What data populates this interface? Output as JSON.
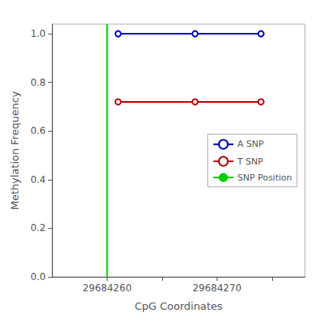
{
  "chart_data": {
    "type": "line",
    "xlabel": "CpG Coordinates",
    "ylabel": "Methylation Frequency",
    "x": [
      29684261,
      29684268,
      29684274
    ],
    "series": [
      {
        "name": "A SNP",
        "color": "#0000BB",
        "values": [
          1.0,
          1.0,
          1.0
        ],
        "marker": "circle"
      },
      {
        "name": "T SNP",
        "color": "#BB0000",
        "values": [
          0.72,
          0.72,
          0.72
        ],
        "marker": "circle"
      },
      {
        "name": "SNP Position",
        "type": "vline",
        "color": "#00CC00",
        "x": 29684260
      }
    ],
    "xlim": [
      29684255,
      29684278
    ],
    "ylim": [
      0.0,
      1.04
    ],
    "xticks": [
      29684260,
      {
        "value": 29684265,
        "label": ""
      },
      29684270,
      {
        "value": 29684275,
        "label": ""
      }
    ],
    "yticks": [
      {
        "value": 0,
        "label": "0.0"
      },
      0.2,
      0.4,
      0.6,
      0.8,
      {
        "value": 1,
        "label": "1.0"
      }
    ],
    "grid": false,
    "legend": "right"
  }
}
